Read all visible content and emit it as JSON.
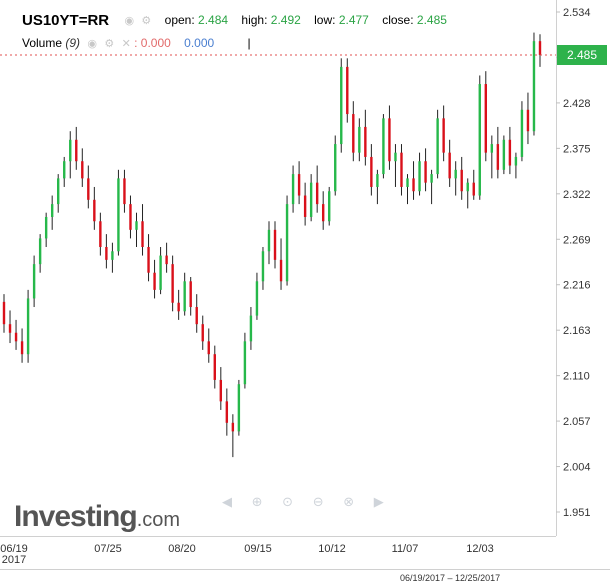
{
  "header": {
    "symbol": "US10YT=RR",
    "open_label": "open:",
    "open": "2.484",
    "high_label": "high:",
    "high": "2.492",
    "low_label": "low:",
    "low": "2.477",
    "close_label": "close:",
    "close": "2.485"
  },
  "volume": {
    "label": "Volume",
    "period": "(9)",
    "value_red": ": 0.000",
    "value_blue": "0.000",
    "sep": "|"
  },
  "branding": {
    "name": "Investing",
    "suffix": ".com"
  },
  "date_range": "06/19/2017 – 12/25/2017",
  "colors": {
    "up": "#26b84a",
    "down": "#d9101a",
    "price_tag": "#2eb24b",
    "price_line": "#e05050"
  },
  "chart_data": {
    "type": "candlestick",
    "y_ticks": [
      "2.534",
      "2.481",
      "2.428",
      "2.375",
      "2.322",
      "2.269",
      "2.216",
      "2.163",
      "2.110",
      "2.057",
      "2.004",
      "1.951"
    ],
    "ylim": [
      1.951,
      2.534
    ],
    "x_ticks": [
      "06/19\n2017",
      "07/25",
      "08/20",
      "09/15",
      "10/12",
      "11/07",
      "12/03"
    ],
    "last_price": "2.485",
    "grid": false,
    "candles": [
      [
        2.196,
        2.205,
        2.16,
        2.17
      ],
      [
        2.17,
        2.186,
        2.148,
        2.16
      ],
      [
        2.16,
        2.175,
        2.14,
        2.15
      ],
      [
        2.15,
        2.165,
        2.125,
        2.135
      ],
      [
        2.135,
        2.21,
        2.125,
        2.2
      ],
      [
        2.2,
        2.25,
        2.19,
        2.24
      ],
      [
        2.24,
        2.275,
        2.23,
        2.27
      ],
      [
        2.27,
        2.3,
        2.26,
        2.295
      ],
      [
        2.295,
        2.32,
        2.28,
        2.31
      ],
      [
        2.31,
        2.345,
        2.3,
        2.34
      ],
      [
        2.34,
        2.365,
        2.33,
        2.36
      ],
      [
        2.36,
        2.395,
        2.34,
        2.385
      ],
      [
        2.385,
        2.4,
        2.35,
        2.36
      ],
      [
        2.36,
        2.375,
        2.33,
        2.34
      ],
      [
        2.34,
        2.355,
        2.305,
        2.315
      ],
      [
        2.315,
        2.33,
        2.28,
        2.29
      ],
      [
        2.29,
        2.3,
        2.25,
        2.26
      ],
      [
        2.26,
        2.275,
        2.235,
        2.245
      ],
      [
        2.245,
        2.265,
        2.23,
        2.255
      ],
      [
        2.255,
        2.35,
        2.25,
        2.34
      ],
      [
        2.34,
        2.35,
        2.3,
        2.31
      ],
      [
        2.31,
        2.32,
        2.27,
        2.28
      ],
      [
        2.28,
        2.3,
        2.26,
        2.29
      ],
      [
        2.29,
        2.31,
        2.25,
        2.26
      ],
      [
        2.26,
        2.275,
        2.22,
        2.23
      ],
      [
        2.23,
        2.245,
        2.2,
        2.21
      ],
      [
        2.21,
        2.26,
        2.205,
        2.25
      ],
      [
        2.25,
        2.265,
        2.23,
        2.24
      ],
      [
        2.24,
        2.25,
        2.185,
        2.195
      ],
      [
        2.195,
        2.21,
        2.175,
        2.185
      ],
      [
        2.185,
        2.23,
        2.18,
        2.22
      ],
      [
        2.22,
        2.225,
        2.18,
        2.19
      ],
      [
        2.19,
        2.205,
        2.16,
        2.17
      ],
      [
        2.17,
        2.18,
        2.14,
        2.15
      ],
      [
        2.15,
        2.165,
        2.125,
        2.135
      ],
      [
        2.135,
        2.145,
        2.095,
        2.105
      ],
      [
        2.105,
        2.12,
        2.07,
        2.08
      ],
      [
        2.08,
        2.095,
        2.04,
        2.055
      ],
      [
        2.055,
        2.065,
        2.015,
        2.045
      ],
      [
        2.045,
        2.105,
        2.04,
        2.1
      ],
      [
        2.1,
        2.16,
        2.095,
        2.15
      ],
      [
        2.15,
        2.19,
        2.14,
        2.18
      ],
      [
        2.18,
        2.23,
        2.175,
        2.22
      ],
      [
        2.22,
        2.26,
        2.21,
        2.255
      ],
      [
        2.255,
        2.29,
        2.24,
        2.28
      ],
      [
        2.28,
        2.29,
        2.235,
        2.245
      ],
      [
        2.245,
        2.27,
        2.21,
        2.22
      ],
      [
        2.22,
        2.32,
        2.215,
        2.31
      ],
      [
        2.31,
        2.355,
        2.3,
        2.345
      ],
      [
        2.345,
        2.36,
        2.31,
        2.32
      ],
      [
        2.32,
        2.335,
        2.285,
        2.295
      ],
      [
        2.295,
        2.345,
        2.29,
        2.335
      ],
      [
        2.335,
        2.355,
        2.3,
        2.31
      ],
      [
        2.31,
        2.325,
        2.28,
        2.29
      ],
      [
        2.29,
        2.33,
        2.285,
        2.325
      ],
      [
        2.325,
        2.39,
        2.32,
        2.38
      ],
      [
        2.38,
        2.48,
        2.37,
        2.47
      ],
      [
        2.47,
        2.48,
        2.405,
        2.415
      ],
      [
        2.415,
        2.43,
        2.36,
        2.37
      ],
      [
        2.37,
        2.41,
        2.36,
        2.4
      ],
      [
        2.4,
        2.42,
        2.355,
        2.365
      ],
      [
        2.365,
        2.38,
        2.32,
        2.33
      ],
      [
        2.33,
        2.35,
        2.31,
        2.345
      ],
      [
        2.345,
        2.415,
        2.34,
        2.41
      ],
      [
        2.41,
        2.425,
        2.35,
        2.36
      ],
      [
        2.36,
        2.38,
        2.33,
        2.37
      ],
      [
        2.37,
        2.38,
        2.32,
        2.33
      ],
      [
        2.33,
        2.345,
        2.31,
        2.34
      ],
      [
        2.34,
        2.36,
        2.315,
        2.325
      ],
      [
        2.325,
        2.37,
        2.32,
        2.36
      ],
      [
        2.36,
        2.375,
        2.325,
        2.335
      ],
      [
        2.335,
        2.35,
        2.31,
        2.345
      ],
      [
        2.345,
        2.42,
        2.34,
        2.41
      ],
      [
        2.41,
        2.425,
        2.36,
        2.37
      ],
      [
        2.37,
        2.385,
        2.33,
        2.34
      ],
      [
        2.34,
        2.36,
        2.32,
        2.35
      ],
      [
        2.35,
        2.365,
        2.315,
        2.325
      ],
      [
        2.325,
        2.34,
        2.305,
        2.335
      ],
      [
        2.335,
        2.35,
        2.315,
        2.32
      ],
      [
        2.32,
        2.46,
        2.315,
        2.45
      ],
      [
        2.45,
        2.465,
        2.36,
        2.37
      ],
      [
        2.37,
        2.39,
        2.34,
        2.38
      ],
      [
        2.38,
        2.4,
        2.34,
        2.35
      ],
      [
        2.35,
        2.39,
        2.345,
        2.385
      ],
      [
        2.385,
        2.4,
        2.345,
        2.355
      ],
      [
        2.355,
        2.37,
        2.34,
        2.365
      ],
      [
        2.365,
        2.43,
        2.36,
        2.42
      ],
      [
        2.42,
        2.44,
        2.38,
        2.395
      ],
      [
        2.395,
        2.51,
        2.39,
        2.5
      ],
      [
        2.5,
        2.508,
        2.47,
        2.484
      ]
    ]
  }
}
